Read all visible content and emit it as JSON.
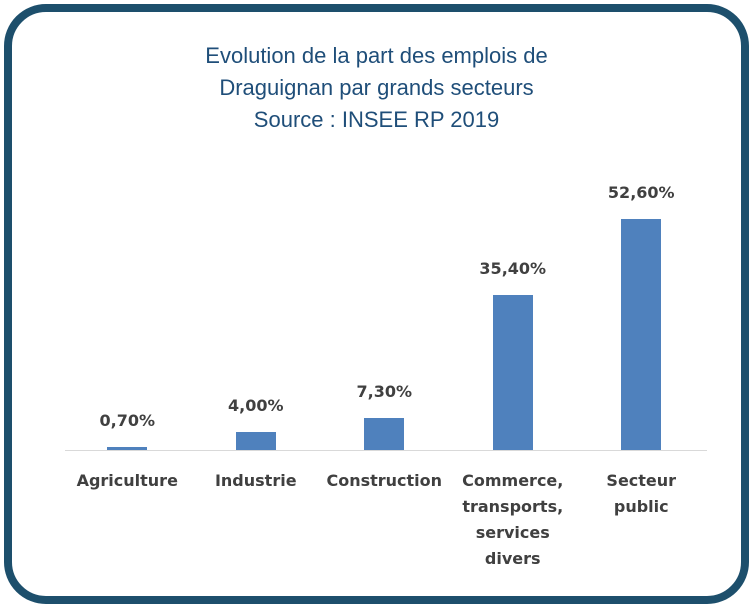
{
  "chart_data": {
    "type": "bar",
    "title": [
      "Evolution de la part des emplois de",
      "Draguignan par grands secteurs",
      "Source : INSEE RP 2019"
    ],
    "categories": [
      "Agriculture",
      "Industrie",
      "Construction",
      "Commerce, transports, services divers",
      "Secteur public"
    ],
    "values": [
      0.7,
      4.0,
      7.3,
      35.4,
      52.6
    ],
    "value_labels": [
      "0,70%",
      "4,00%",
      "7,30%",
      "35,40%",
      "52,60%"
    ],
    "color": "#4f81bd"
  }
}
